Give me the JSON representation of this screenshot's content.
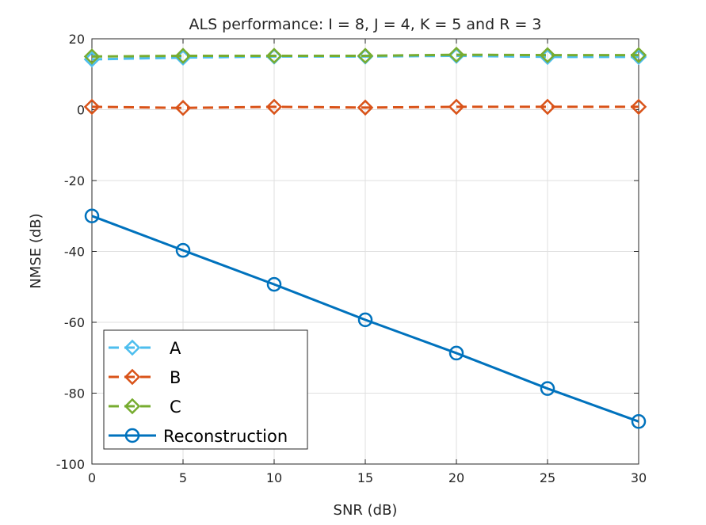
{
  "chart_data": {
    "type": "line",
    "title": "ALS performance: I = 8, J = 4, K = 5 and R = 3",
    "xlabel": "SNR (dB)",
    "ylabel": "NMSE (dB)",
    "xlim": [
      0,
      30
    ],
    "ylim": [
      -100,
      20
    ],
    "x_ticks": [
      0,
      5,
      10,
      15,
      20,
      25,
      30
    ],
    "y_ticks": [
      -100,
      -80,
      -60,
      -40,
      -20,
      0,
      20
    ],
    "grid": true,
    "legend_position": "bottom-left",
    "x": [
      0,
      5,
      10,
      15,
      20,
      25,
      30
    ],
    "series": [
      {
        "name": "A",
        "values": [
          14.2,
          14.7,
          15.0,
          15.0,
          15.2,
          14.9,
          14.9
        ],
        "color": "#4DBEEE",
        "line_style": "dashed",
        "marker": "diamond"
      },
      {
        "name": "B",
        "values": [
          0.8,
          0.5,
          0.8,
          0.6,
          0.8,
          0.8,
          0.8
        ],
        "color": "#D95319",
        "line_style": "dashed",
        "marker": "diamond"
      },
      {
        "name": "C",
        "values": [
          15.0,
          15.2,
          15.2,
          15.2,
          15.5,
          15.4,
          15.4
        ],
        "color": "#77AC30",
        "line_style": "dashed",
        "marker": "diamond"
      },
      {
        "name": "Reconstruction",
        "values": [
          -30.0,
          -39.7,
          -49.3,
          -59.3,
          -68.7,
          -78.7,
          -88.0
        ],
        "color": "#0072BD",
        "line_style": "solid",
        "marker": "circle"
      }
    ]
  }
}
